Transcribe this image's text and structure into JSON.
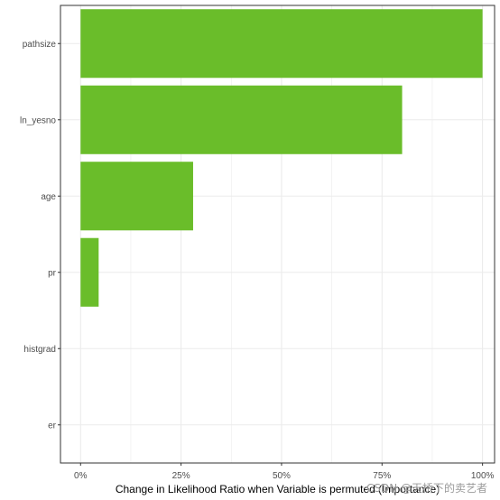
{
  "chart_data": {
    "type": "bar",
    "orientation": "horizontal",
    "categories": [
      "pathsize",
      "ln_yesno",
      "age",
      "pr",
      "histgrad",
      "er"
    ],
    "values": [
      1.0,
      0.8,
      0.28,
      0.045,
      0.0,
      0.0
    ],
    "xlabel": "Change in Likelihood Ratio when Variable is permuted (Importance)",
    "ylabel": "",
    "xlim": [
      -0.05,
      1.03
    ],
    "x_ticks": [
      0,
      0.25,
      0.5,
      0.75,
      1.0
    ],
    "x_tick_labels": [
      "0%",
      "25%",
      "50%",
      "75%",
      "100%"
    ],
    "grid": true,
    "bar_color": "#6abd2a",
    "panel_border_color": "#333333",
    "grid_color": "#ebebeb"
  },
  "watermark": "CSDN @天桥下的卖艺者"
}
